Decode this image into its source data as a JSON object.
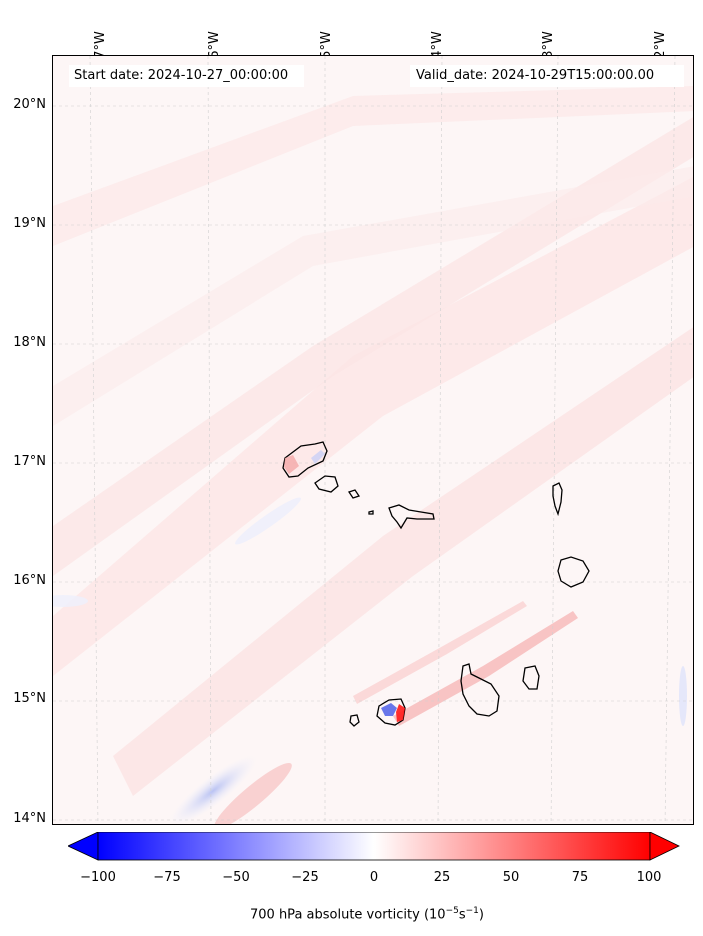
{
  "header": {
    "start_date": "Start date: 2024-10-27_00:00:00",
    "valid_date": "Valid_date: 2024-10-29T15:00:00.00"
  },
  "axes": {
    "longitude_labels": [
      "27°W",
      "26°W",
      "25°W",
      "24°W",
      "23°W",
      "22°W"
    ],
    "latitude_labels": [
      "20°N",
      "19°N",
      "18°N",
      "17°N",
      "16°N",
      "15°N",
      "14°N"
    ]
  },
  "colorbar": {
    "label_main": "700 hPa absolute vorticity (10",
    "label_exp1": "−5",
    "label_mid": "s",
    "label_exp2": "−1",
    "label_end": ")",
    "ticks": [
      "−100",
      "−75",
      "−50",
      "−25",
      "0",
      "25",
      "50",
      "75",
      "100"
    ],
    "min_color": "#0000ff",
    "mid_color": "#ffffff",
    "max_color": "#ff0000"
  },
  "map": {
    "region": "Cape Verde Islands",
    "background_color": "#fdf6f6",
    "gridlines": true
  }
}
